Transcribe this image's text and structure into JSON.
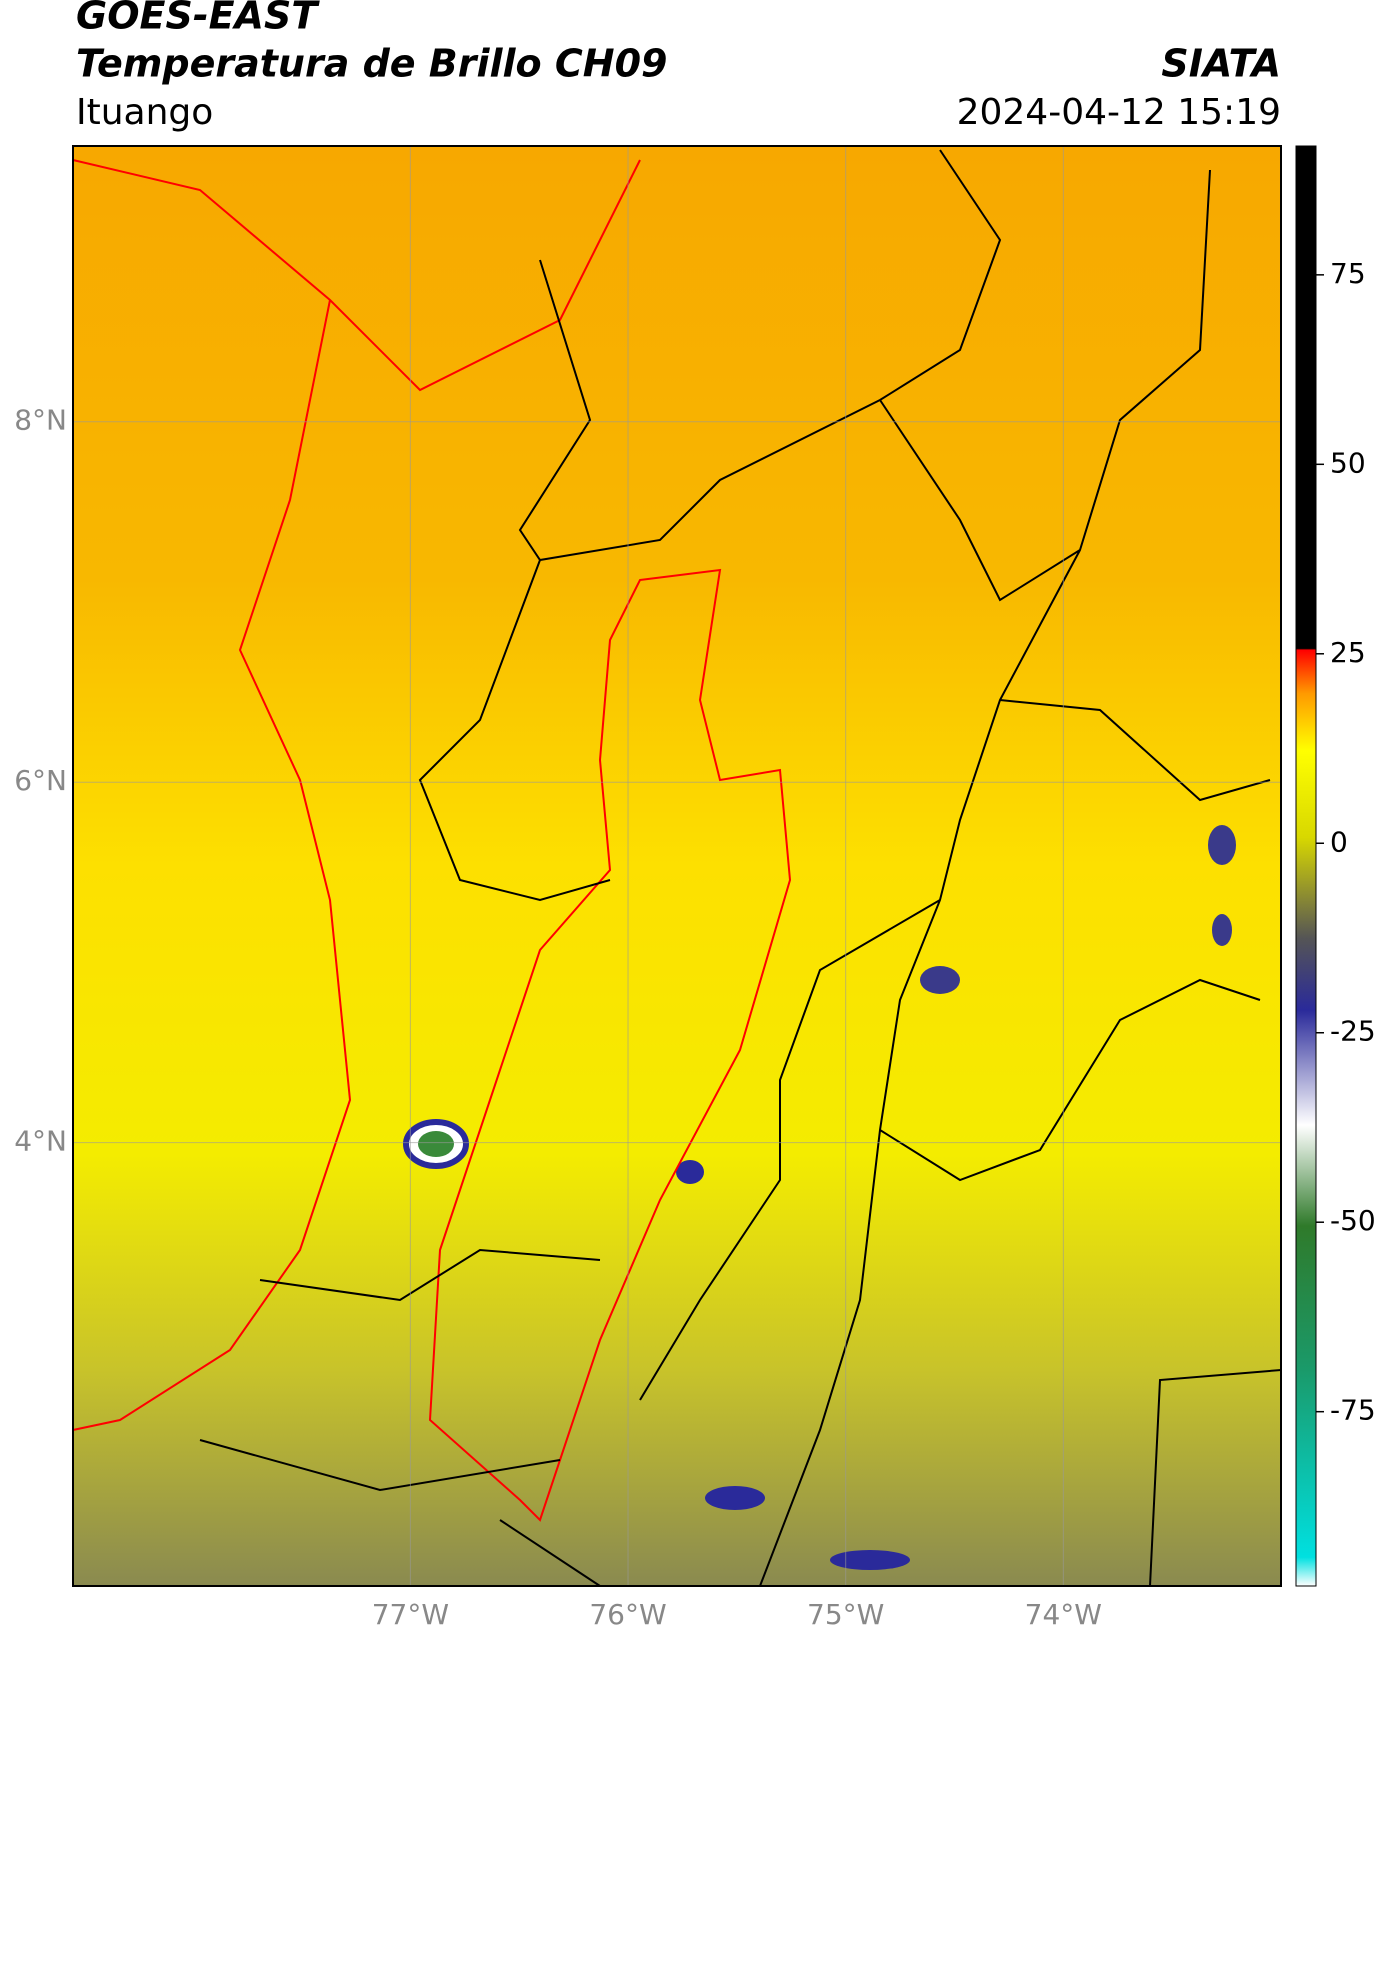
{
  "header": {
    "satellite": "GOES-EAST",
    "product": "Temperatura de Brillo CH09",
    "agency": "SIATA",
    "location": "Ituango",
    "datetime": "2024-04-12 15:19"
  },
  "map": {
    "latlim": [
      1.54,
      9.53
    ],
    "lonlim": [
      -78.55,
      -73.0
    ],
    "lat_ticks": [
      {
        "value": 8,
        "label": "8°N"
      },
      {
        "value": 6,
        "label": "6°N"
      },
      {
        "value": 4,
        "label": "4°N"
      }
    ],
    "lon_ticks": [
      {
        "value": -77,
        "label": "77°W"
      },
      {
        "value": -76,
        "label": "76°W"
      },
      {
        "value": -75,
        "label": "75°W"
      },
      {
        "value": -74,
        "label": "74°W"
      }
    ]
  },
  "colorbar": {
    "lim": [
      -98,
      92
    ],
    "ticks": [
      75,
      50,
      25,
      0,
      -25,
      -50,
      -75
    ]
  }
}
